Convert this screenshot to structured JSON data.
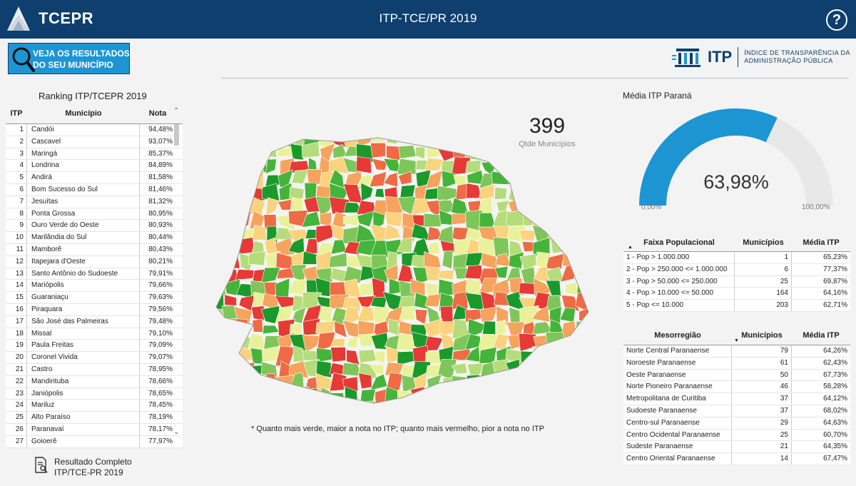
{
  "header": {
    "brand": "TCEPR",
    "title": "ITP-TCE/PR 2019",
    "help_icon": "?"
  },
  "search_button": {
    "label": "VEJA OS RESULTADOS\nDO SEU MUNICÍPIO"
  },
  "itp_logo": {
    "name": "ITP",
    "subtitle": "ÍNDICE DE TRANSPARÊNCIA DA\nADMINISTRAÇÃO PÚBLICA"
  },
  "ranking": {
    "title": "Ranking ITP/TCEPR 2019",
    "columns": [
      "ITP",
      "Município",
      "Nota"
    ],
    "rows": [
      [
        "1",
        "Candói",
        "94,48%"
      ],
      [
        "2",
        "Cascavel",
        "93,07%"
      ],
      [
        "3",
        "Maringá",
        "85,37%"
      ],
      [
        "4",
        "Londrina",
        "84,89%"
      ],
      [
        "5",
        "Andirá",
        "81,58%"
      ],
      [
        "6",
        "Bom Sucesso do Sul",
        "81,46%"
      ],
      [
        "7",
        "Jesuítas",
        "81,32%"
      ],
      [
        "8",
        "Ponta Grossa",
        "80,95%"
      ],
      [
        "9",
        "Ouro Verde do Oeste",
        "80,93%"
      ],
      [
        "10",
        "Marilândia do Sul",
        "80,44%"
      ],
      [
        "11",
        "Mamborê",
        "80,43%"
      ],
      [
        "12",
        "Itapejara d'Oeste",
        "80,21%"
      ],
      [
        "13",
        "Santo Antônio do Sudoeste",
        "79,91%"
      ],
      [
        "14",
        "Mariópolis",
        "79,66%"
      ],
      [
        "15",
        "Guaraniaçu",
        "79,63%"
      ],
      [
        "16",
        "Piraquara",
        "79,56%"
      ],
      [
        "17",
        "São José das Palmeiras",
        "79,48%"
      ],
      [
        "18",
        "Missal",
        "79,10%"
      ],
      [
        "19",
        "Paula Freitas",
        "79,09%"
      ],
      [
        "20",
        "Coronel Vivida",
        "79,07%"
      ],
      [
        "21",
        "Castro",
        "78,95%"
      ],
      [
        "22",
        "Mandirituba",
        "78,66%"
      ],
      [
        "23",
        "Janiópolis",
        "78,65%"
      ],
      [
        "24",
        "Mariluz",
        "78,45%"
      ],
      [
        "25",
        "Alto Paraíso",
        "78,19%"
      ],
      [
        "26",
        "Paranavaí",
        "78,17%"
      ],
      [
        "27",
        "Goioerê",
        "77,97%"
      ]
    ]
  },
  "result_link": {
    "label": "Resultado Completo\nITP/TCE-PR 2019"
  },
  "kpi": {
    "value": "399",
    "caption": "Qtde Municípios"
  },
  "map_note": "* Quanto mais verde, maior a nota no ITP; quanto mais vermelho, pior a nota no ITP",
  "gauge": {
    "title": "Média ITP Paraná",
    "value": 63.98,
    "value_label": "63,98%",
    "min_label": "0,00%",
    "max_label": "100,00%",
    "fill_color": "#1e95d3",
    "track_color": "#e8e8e8"
  },
  "faixa_table": {
    "columns": [
      "Faixa Populacional",
      "Municípios",
      "Média ITP"
    ],
    "rows": [
      [
        "1 - Pop > 1.000.000",
        "1",
        "65,23%"
      ],
      [
        "2 - Pop > 250.000 <= 1.000.000",
        "6",
        "77,37%"
      ],
      [
        "3 - Pop > 50.000 <= 250.000",
        "25",
        "69,87%"
      ],
      [
        "4 - Pop > 10.000 <= 50.000",
        "164",
        "64,16%"
      ],
      [
        "5 - Pop <= 10.000",
        "203",
        "62,71%"
      ]
    ]
  },
  "meso_table": {
    "columns": [
      "Mesorregião",
      "Municípios",
      "Média ITP"
    ],
    "rows": [
      [
        "Norte Central Paranaense",
        "79",
        "64,26%"
      ],
      [
        "Noroeste Paranaense",
        "61",
        "62,43%"
      ],
      [
        "Oeste Paranaense",
        "50",
        "67,73%"
      ],
      [
        "Norte Pioneiro Paranaense",
        "46",
        "58,28%"
      ],
      [
        "Metropolitana de Curitiba",
        "37",
        "64,12%"
      ],
      [
        "Sudoeste Paranaense",
        "37",
        "68,02%"
      ],
      [
        "Centro-sul Paranaense",
        "29",
        "64,63%"
      ],
      [
        "Centro Ocidental Paranaense",
        "25",
        "60,70%"
      ],
      [
        "Sudeste Paranaense",
        "21",
        "64,35%"
      ],
      [
        "Centro Oriental Paranaense",
        "14",
        "67,47%"
      ]
    ]
  },
  "colors": {
    "header": "#0e3f6e",
    "accent": "#1e95d3"
  }
}
